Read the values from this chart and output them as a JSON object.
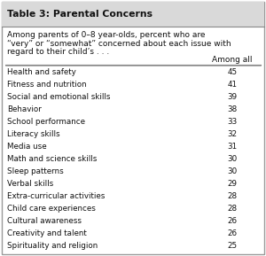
{
  "title": "Table 3: Parental Concerns",
  "subtitle_lines": [
    "Among parents of 0–8 year-olds, percent who are",
    "“very” or “somewhat” concerned about each issue with",
    "regard to their child’s . . ."
  ],
  "col_header": "Among all",
  "rows": [
    [
      "Health and safety",
      "45"
    ],
    [
      "Fitness and nutrition",
      "41"
    ],
    [
      "Social and emotional skills",
      "39"
    ],
    [
      "Behavior",
      "38"
    ],
    [
      "School performance",
      "33"
    ],
    [
      "Literacy skills",
      "32"
    ],
    [
      "Media use",
      "31"
    ],
    [
      "Math and science skills",
      "30"
    ],
    [
      "Sleep patterns",
      "30"
    ],
    [
      "Verbal skills",
      "29"
    ],
    [
      "Extra-curricular activities",
      "28"
    ],
    [
      "Child care experiences",
      "28"
    ],
    [
      "Cultural awareness",
      "26"
    ],
    [
      "Creativity and talent",
      "26"
    ],
    [
      "Spirituality and religion",
      "25"
    ]
  ],
  "outer_bg": "#ffffff",
  "title_bg": "#d9d9d9",
  "content_bg": "#ffffff",
  "border_color": "#999999",
  "rule_color": "#888888",
  "text_color": "#111111",
  "title_fontsize": 7.8,
  "subtitle_fontsize": 6.5,
  "header_fontsize": 6.5,
  "row_fontsize": 6.3
}
